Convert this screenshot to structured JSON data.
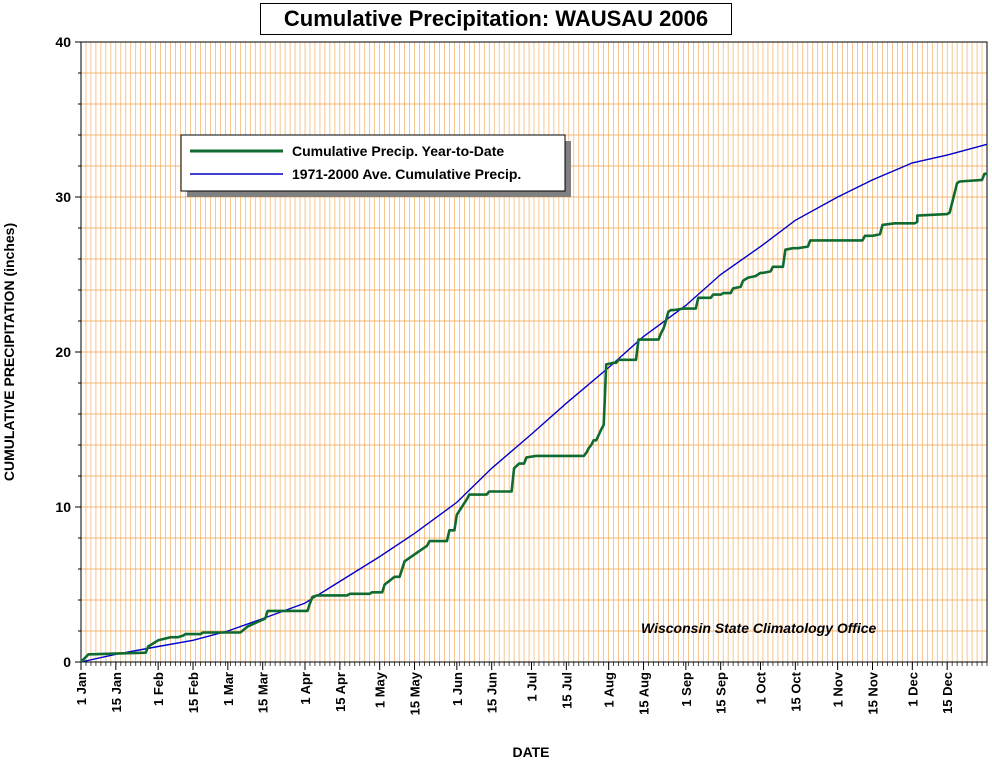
{
  "chart_data": {
    "type": "line",
    "title": "Cumulative Precipitation: WAUSAU 2006",
    "xlabel": "DATE",
    "ylabel": "CUMULATIVE PRECIPITATION (inches)",
    "x_unit": "day of year 2006",
    "xlim": [
      1,
      365
    ],
    "ylim": [
      0,
      40
    ],
    "y_ticks": [
      0,
      10,
      20,
      30,
      40
    ],
    "x_ticks": [
      {
        "doy": 1,
        "label": "1 Jan"
      },
      {
        "doy": 15,
        "label": "15 Jan"
      },
      {
        "doy": 32,
        "label": "1 Feb"
      },
      {
        "doy": 46,
        "label": "15 Feb"
      },
      {
        "doy": 60,
        "label": "1 Mar"
      },
      {
        "doy": 74,
        "label": "15 Mar"
      },
      {
        "doy": 91,
        "label": "1 Apr"
      },
      {
        "doy": 105,
        "label": "15 Apr"
      },
      {
        "doy": 121,
        "label": "1 May"
      },
      {
        "doy": 135,
        "label": "15 May"
      },
      {
        "doy": 152,
        "label": "1 Jun"
      },
      {
        "doy": 166,
        "label": "15 Jun"
      },
      {
        "doy": 182,
        "label": "1 Jul"
      },
      {
        "doy": 196,
        "label": "15 Jul"
      },
      {
        "doy": 213,
        "label": "1 Aug"
      },
      {
        "doy": 227,
        "label": "15 Aug"
      },
      {
        "doy": 244,
        "label": "1 Sep"
      },
      {
        "doy": 258,
        "label": "15 Sep"
      },
      {
        "doy": 274,
        "label": "1 Oct"
      },
      {
        "doy": 288,
        "label": "15 Oct"
      },
      {
        "doy": 305,
        "label": "1 Nov"
      },
      {
        "doy": 319,
        "label": "15 Nov"
      },
      {
        "doy": 335,
        "label": "1 Dec"
      },
      {
        "doy": 349,
        "label": "15 Dec"
      }
    ],
    "grid": true,
    "legend_position": "top-left",
    "credit": "Wisconsin State Climatology Office",
    "colors": {
      "grid": "#f2a24a",
      "ytd": "#0f6b2f",
      "avg": "#0000cc"
    },
    "series": [
      {
        "name": "Cumulative Precip. Year-to-Date",
        "color": "#0f6b2f",
        "x": [
          1,
          4,
          5,
          27,
          28,
          31,
          32,
          37,
          40,
          42,
          43,
          49,
          50,
          65,
          68,
          75,
          76,
          92,
          93,
          94,
          96,
          97,
          108,
          109,
          111,
          114,
          117,
          118,
          122,
          123,
          127,
          128,
          129,
          131,
          140,
          141,
          144,
          148,
          149,
          151,
          152,
          156,
          157,
          164,
          165,
          174,
          175,
          177,
          179,
          180,
          184,
          199,
          200,
          202,
          203,
          204,
          205,
          206,
          207,
          208,
          210,
          211,
          212,
          215,
          216,
          217,
          219,
          224,
          225,
          233,
          234,
          235,
          236,
          237,
          238,
          239,
          243,
          248,
          249,
          254,
          255,
          258,
          259,
          262,
          263,
          266,
          267,
          269,
          272,
          274,
          275,
          278,
          279,
          283,
          284,
          287,
          288,
          289,
          293,
          294,
          315,
          316,
          318,
          319,
          322,
          323,
          328,
          329,
          336,
          337,
          337,
          349,
          350,
          353,
          354,
          363,
          364,
          365
        ],
        "y": [
          0.0,
          0.5,
          0.5,
          0.6,
          1.0,
          1.3,
          1.4,
          1.6,
          1.6,
          1.7,
          1.8,
          1.8,
          1.9,
          1.9,
          2.3,
          2.8,
          3.3,
          3.3,
          3.8,
          4.2,
          4.3,
          4.3,
          4.3,
          4.4,
          4.4,
          4.4,
          4.4,
          4.5,
          4.5,
          5.0,
          5.5,
          5.5,
          5.5,
          6.5,
          7.5,
          7.8,
          7.8,
          7.8,
          8.5,
          8.5,
          9.5,
          10.5,
          10.8,
          10.8,
          11.0,
          11.0,
          12.5,
          12.8,
          12.8,
          13.2,
          13.3,
          13.3,
          13.3,
          13.3,
          13.3,
          13.5,
          13.8,
          14.0,
          14.3,
          14.3,
          15.0,
          15.3,
          19.2,
          19.3,
          19.3,
          19.5,
          19.5,
          19.5,
          20.8,
          20.8,
          21.2,
          21.5,
          22.0,
          22.6,
          22.7,
          22.7,
          22.8,
          22.8,
          23.5,
          23.5,
          23.7,
          23.7,
          23.8,
          23.8,
          24.1,
          24.2,
          24.6,
          24.8,
          24.9,
          25.1,
          25.1,
          25.2,
          25.5,
          25.5,
          26.6,
          26.7,
          26.7,
          26.7,
          26.8,
          27.2,
          27.2,
          27.5,
          27.5,
          27.5,
          27.6,
          28.2,
          28.3,
          28.3,
          28.3,
          28.4,
          28.8,
          28.9,
          29.0,
          30.9,
          31.0,
          31.1,
          31.5,
          31.5
        ]
      },
      {
        "name": "1971-2000 Ave. Cumulative Precip.",
        "color": "#0000cc",
        "x": [
          1,
          15,
          32,
          46,
          60,
          74,
          91,
          105,
          121,
          135,
          152,
          166,
          182,
          196,
          213,
          227,
          244,
          258,
          274,
          288,
          305,
          319,
          335,
          349,
          365
        ],
        "y": [
          0.0,
          0.5,
          1.0,
          1.4,
          2.0,
          2.8,
          3.8,
          5.2,
          6.8,
          8.3,
          10.3,
          12.5,
          14.7,
          16.7,
          19.0,
          21.0,
          23.0,
          25.0,
          26.8,
          28.5,
          30.0,
          31.1,
          32.2,
          32.7,
          33.4
        ]
      }
    ]
  }
}
